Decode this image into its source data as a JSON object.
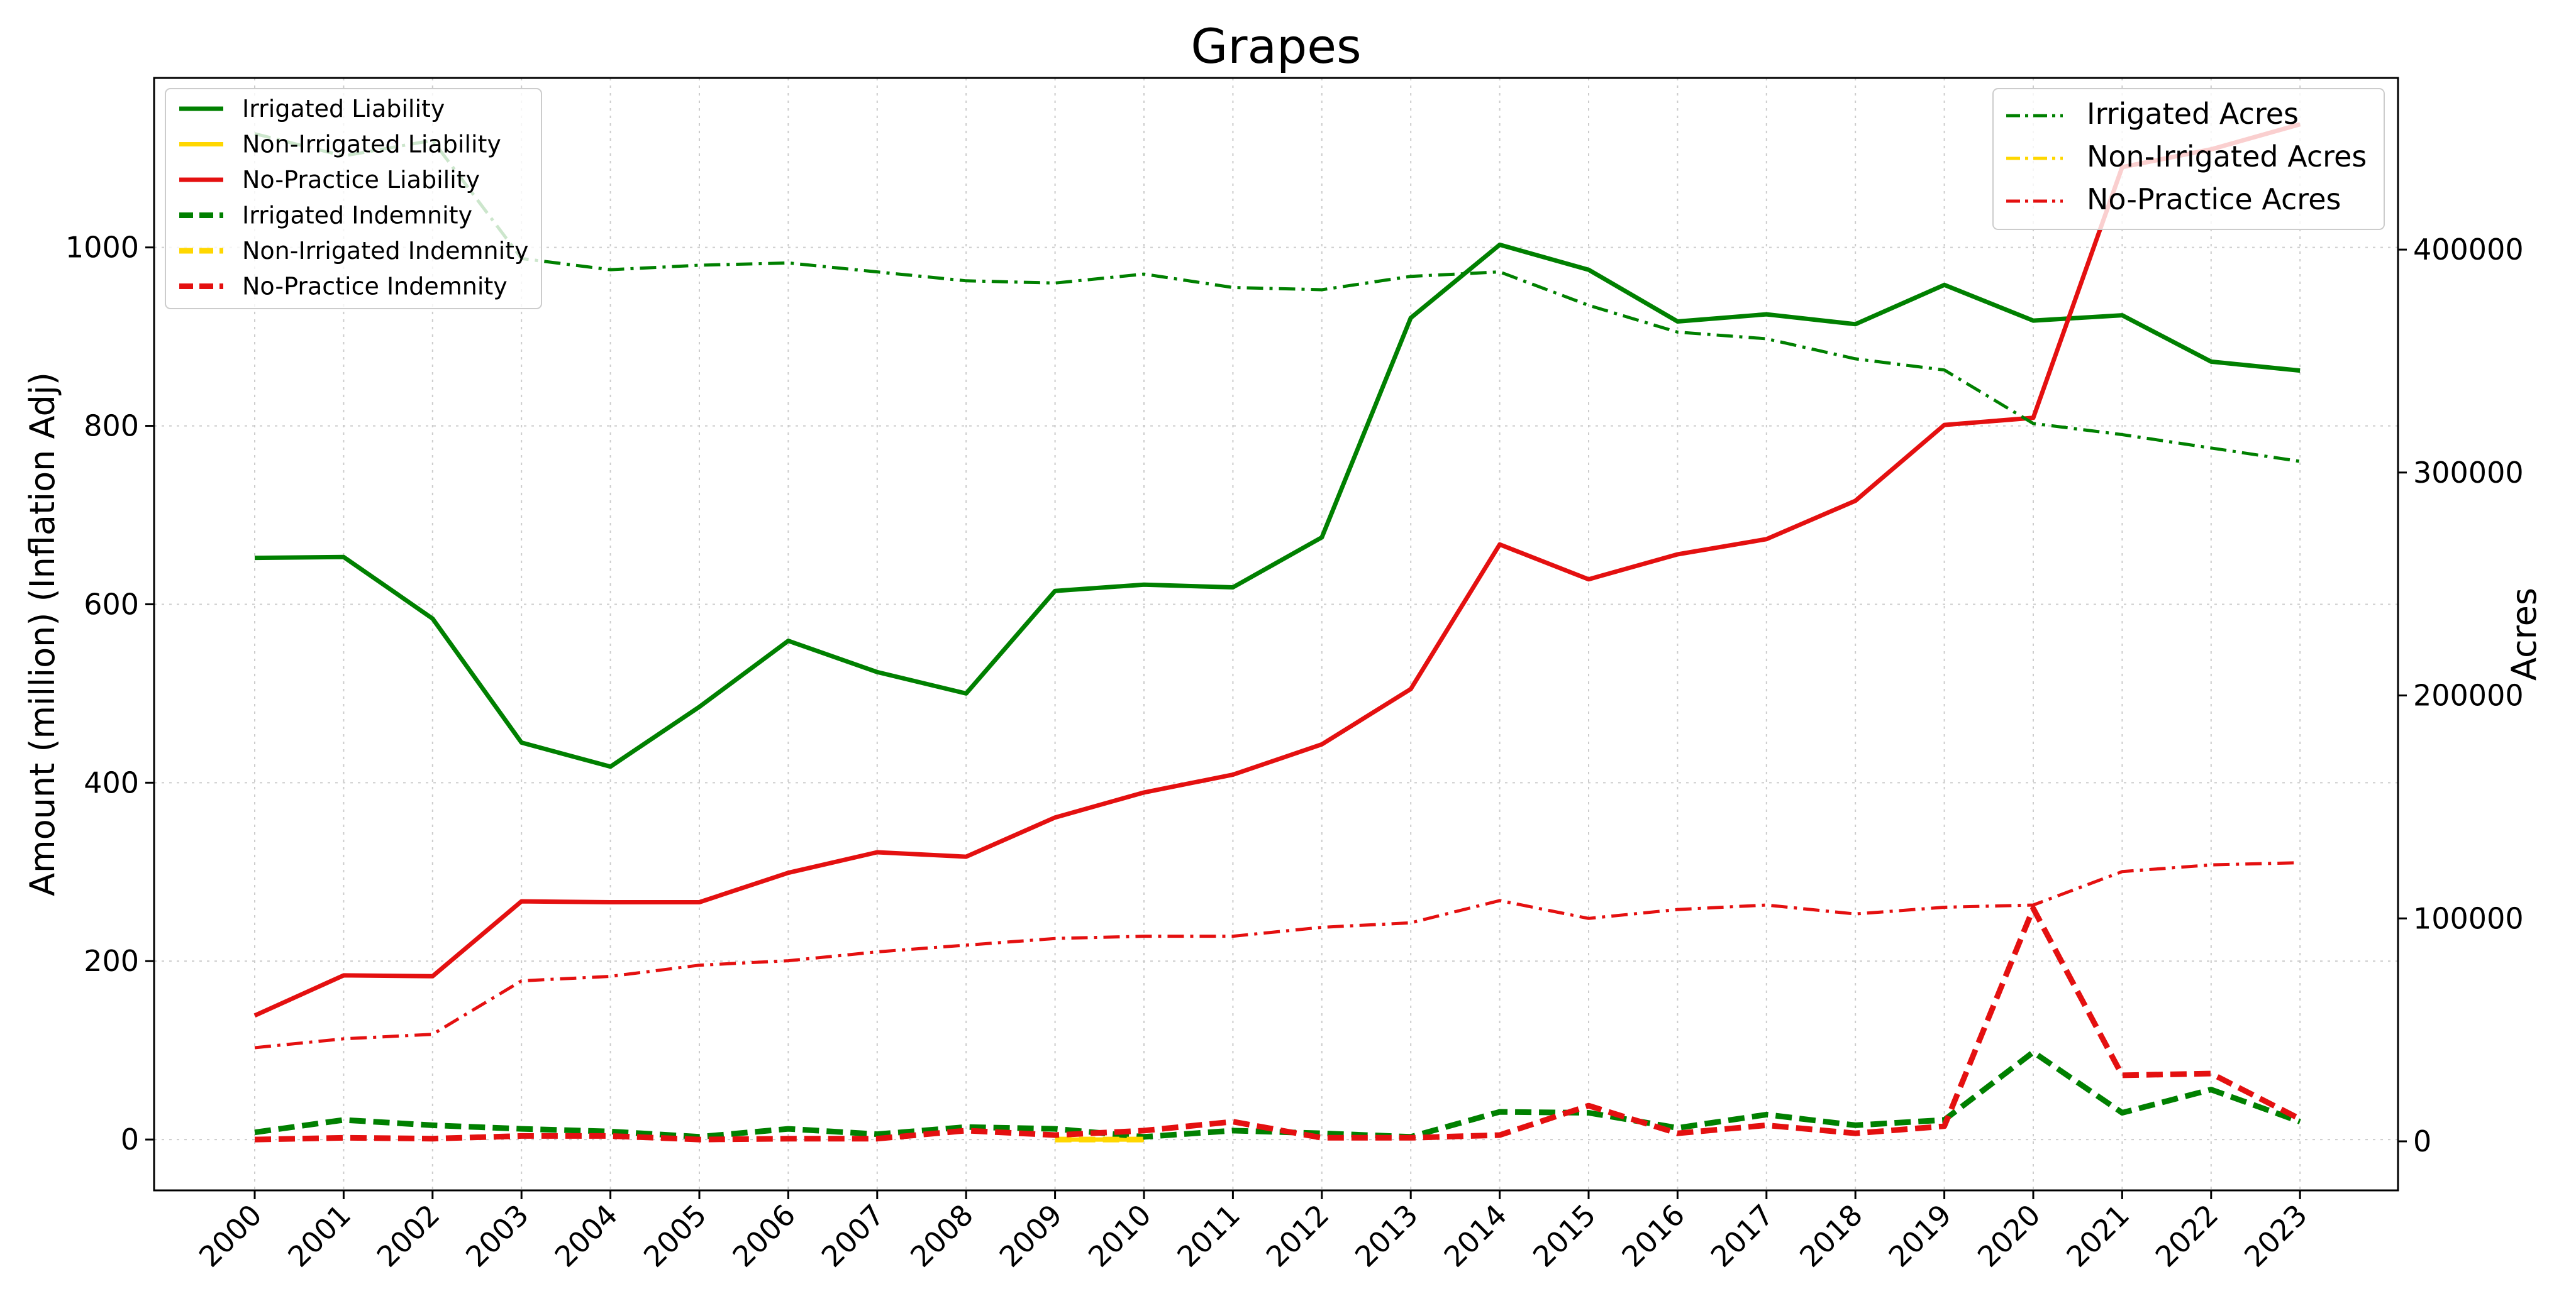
{
  "chart_data": {
    "type": "line",
    "title": "Grapes",
    "xlabel": "",
    "ylabel": "Amount (million) (Inflation Adj)",
    "y2label": "Acres",
    "x": [
      2000,
      2001,
      2002,
      2003,
      2004,
      2005,
      2006,
      2007,
      2008,
      2009,
      2010,
      2011,
      2012,
      2013,
      2014,
      2015,
      2016,
      2017,
      2018,
      2019,
      2020,
      2021,
      2022,
      2023
    ],
    "x_tick_labels": [
      "2000",
      "2001",
      "2002",
      "2003",
      "2004",
      "2005",
      "2006",
      "2007",
      "2008",
      "2009",
      "2010",
      "2011",
      "2012",
      "2013",
      "2014",
      "2015",
      "2016",
      "2017",
      "2018",
      "2019",
      "2020",
      "2021",
      "2022",
      "2023"
    ],
    "ylim": [
      -57,
      1190
    ],
    "y_ticks": [
      0,
      200,
      400,
      600,
      800,
      1000
    ],
    "y_tick_labels": [
      "0",
      "200",
      "400",
      "600",
      "800",
      "1000"
    ],
    "y2lim": [
      -22000,
      477000
    ],
    "y2_ticks": [
      0,
      100000,
      200000,
      300000,
      400000
    ],
    "y2_tick_labels": [
      "0",
      "100000",
      "200000",
      "300000",
      "400000"
    ],
    "grid": true,
    "legend_left_placement": "upper-left",
    "legend_right_placement": "upper-right",
    "series": [
      {
        "name": "Irrigated Liability",
        "axis": "left",
        "style": "solid",
        "color": "#008000",
        "values": [
          652,
          653,
          584,
          445,
          418,
          485,
          559,
          524,
          500,
          615,
          622,
          619,
          675,
          921,
          1003,
          975,
          917,
          925,
          914,
          958,
          918,
          924,
          872,
          862
        ]
      },
      {
        "name": "Non-Irrigated Liability",
        "axis": "left",
        "style": "solid",
        "color": "#FFD700",
        "values": [
          null,
          null,
          null,
          null,
          null,
          null,
          null,
          null,
          null,
          0,
          0,
          null,
          null,
          null,
          null,
          null,
          null,
          null,
          null,
          null,
          null,
          null,
          null,
          null
        ]
      },
      {
        "name": "No-Practice Liability",
        "axis": "left",
        "style": "solid",
        "color": "#E41010",
        "values": [
          139,
          184,
          183,
          267,
          266,
          266,
          299,
          322,
          317,
          361,
          389,
          409,
          443,
          505,
          667,
          628,
          656,
          673,
          716,
          801,
          809,
          1090,
          1110,
          1138
        ]
      },
      {
        "name": "Irrigated Indemnity",
        "axis": "left",
        "style": "dashed",
        "color": "#008000",
        "values": [
          8,
          22,
          16,
          12,
          9,
          3,
          12,
          6,
          14,
          12,
          3,
          10,
          7,
          3,
          31,
          30,
          13,
          28,
          16,
          22,
          98,
          30,
          56,
          20
        ]
      },
      {
        "name": "Non-Irrigated Indemnity",
        "axis": "left",
        "style": "dashed",
        "color": "#FFD700",
        "values": [
          null,
          null,
          null,
          null,
          null,
          null,
          null,
          null,
          null,
          0,
          0,
          null,
          null,
          null,
          null,
          null,
          null,
          null,
          null,
          null,
          null,
          null,
          null,
          null
        ]
      },
      {
        "name": "No-Practice Indemnity",
        "axis": "left",
        "style": "dashed",
        "color": "#E41010",
        "values": [
          0,
          2,
          1,
          4,
          4,
          0,
          1,
          1,
          10,
          5,
          10,
          20,
          2,
          2,
          5,
          38,
          7,
          16,
          7,
          15,
          259,
          72,
          74,
          23
        ]
      },
      {
        "name": "Irrigated Acres",
        "axis": "right",
        "style": "dashdot",
        "color": "#008000",
        "values": [
          452000,
          442000,
          449000,
          396000,
          391000,
          393000,
          394000,
          390000,
          386000,
          385000,
          389000,
          383000,
          382000,
          388000,
          390000,
          375000,
          363000,
          360000,
          351000,
          346000,
          322000,
          317000,
          311000,
          305000
        ]
      },
      {
        "name": "Non-Irrigated Acres",
        "axis": "right",
        "style": "dashdot",
        "color": "#FFD700",
        "values": [
          null,
          null,
          null,
          null,
          null,
          null,
          null,
          null,
          null,
          null,
          null,
          null,
          null,
          null,
          null,
          null,
          null,
          null,
          null,
          null,
          null,
          null,
          null,
          null
        ]
      },
      {
        "name": "No-Practice Acres",
        "axis": "right",
        "style": "dashdot",
        "color": "#E41010",
        "values": [
          42000,
          46000,
          48000,
          72000,
          74000,
          79000,
          81000,
          85000,
          88000,
          91000,
          92000,
          92000,
          96000,
          98000,
          108000,
          100000,
          104000,
          106000,
          102000,
          105000,
          106000,
          121000,
          124000,
          125000
        ]
      }
    ],
    "legend_left": [
      "Irrigated Liability",
      "Non-Irrigated Liability",
      "No-Practice Liability",
      "Irrigated Indemnity",
      "Non-Irrigated Indemnity",
      "No-Practice Indemnity"
    ],
    "legend_right": [
      "Irrigated Acres",
      "Non-Irrigated Acres",
      "No-Practice Acres"
    ]
  }
}
